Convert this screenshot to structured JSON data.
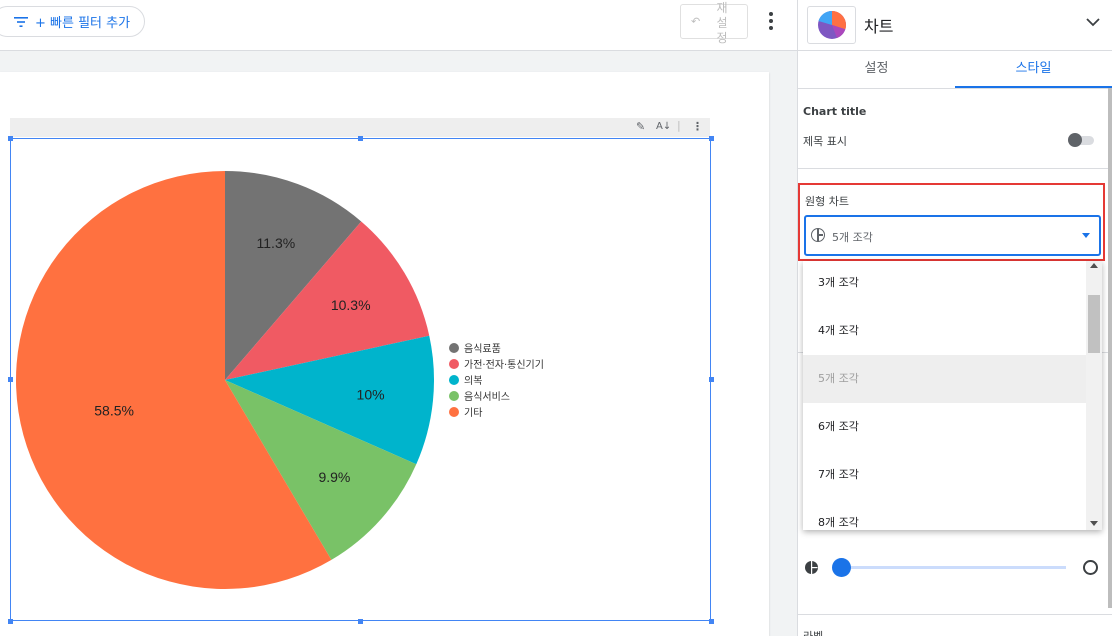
{
  "topbar": {
    "filter_label": "+ 빠른 필터 추가",
    "reset_label": "재설정"
  },
  "chart_data": {
    "type": "pie",
    "categories": [
      "음식료품",
      "가전·전자·통신기기",
      "의복",
      "음식서비스",
      "기타"
    ],
    "values": [
      11.3,
      10.3,
      10,
      9.9,
      58.5
    ],
    "labels": [
      "11.3%",
      "10.3%",
      "10%",
      "9.9%",
      "58.5%"
    ],
    "colors": [
      "#737373",
      "#f05a63",
      "#00b4cc",
      "#79c267",
      "#ff7140"
    ],
    "legend_position": "right"
  },
  "panel": {
    "title": "차트",
    "tabs": [
      {
        "label": "설정",
        "active": false
      },
      {
        "label": "스타일",
        "active": true
      }
    ],
    "chart_title_section": "Chart title",
    "show_title_label": "제목 표시",
    "show_title_on": false,
    "pie_section_label": "원형 차트",
    "slices_selected": "5개 조각",
    "slice_options": [
      "3개 조각",
      "4개 조각",
      "5개 조각",
      "6개 조각",
      "7개 조각",
      "8개 조각"
    ],
    "bottom_label": "라벨"
  }
}
